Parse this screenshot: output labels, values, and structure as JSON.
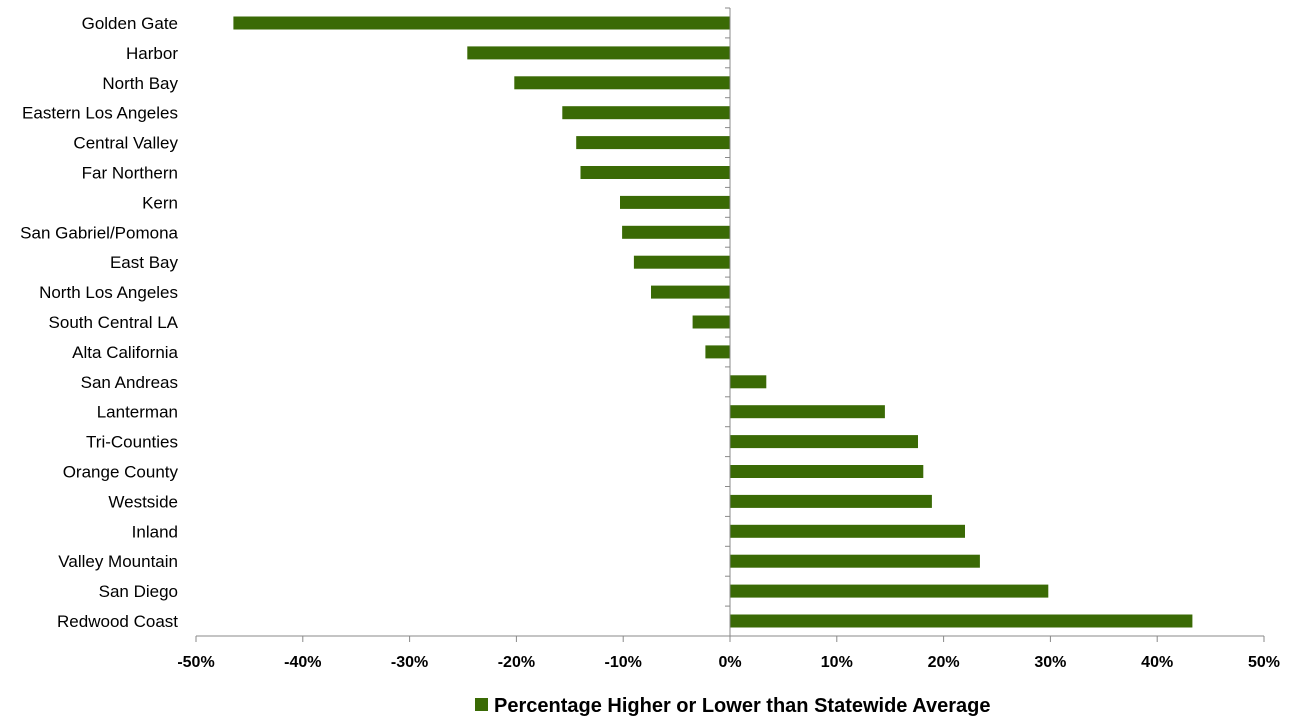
{
  "chart_data": {
    "type": "bar",
    "orientation": "horizontal",
    "categories": [
      "Golden Gate",
      "Harbor",
      "North Bay",
      "Eastern Los Angeles",
      "Central Valley",
      "Far Northern",
      "Kern",
      "San Gabriel/Pomona",
      "East Bay",
      "North Los Angeles",
      "South Central LA",
      "Alta California",
      "San Andreas",
      "Lanterman",
      "Tri-Counties",
      "Orange County",
      "Westside",
      "Inland",
      "Valley Mountain",
      "San Diego",
      "Redwood Coast"
    ],
    "series": [
      {
        "name": "Percentage Higher or Lower than Statewide Average",
        "color": "#3a6a05",
        "values": [
          -46.5,
          -24.6,
          -20.2,
          -15.7,
          -14.4,
          -14.0,
          -10.3,
          -10.1,
          -9.0,
          -7.4,
          -3.5,
          -2.3,
          3.4,
          14.5,
          17.6,
          18.1,
          18.9,
          22.0,
          23.4,
          29.8,
          43.3
        ]
      }
    ],
    "x_ticks": [
      "-50%",
      "-40%",
      "-30%",
      "-20%",
      "-10%",
      "0%",
      "10%",
      "20%",
      "30%",
      "40%",
      "50%"
    ],
    "xlim": [
      -50,
      50
    ],
    "grid": false,
    "legend_position": "bottom",
    "title": "",
    "xlabel": "",
    "ylabel": ""
  }
}
